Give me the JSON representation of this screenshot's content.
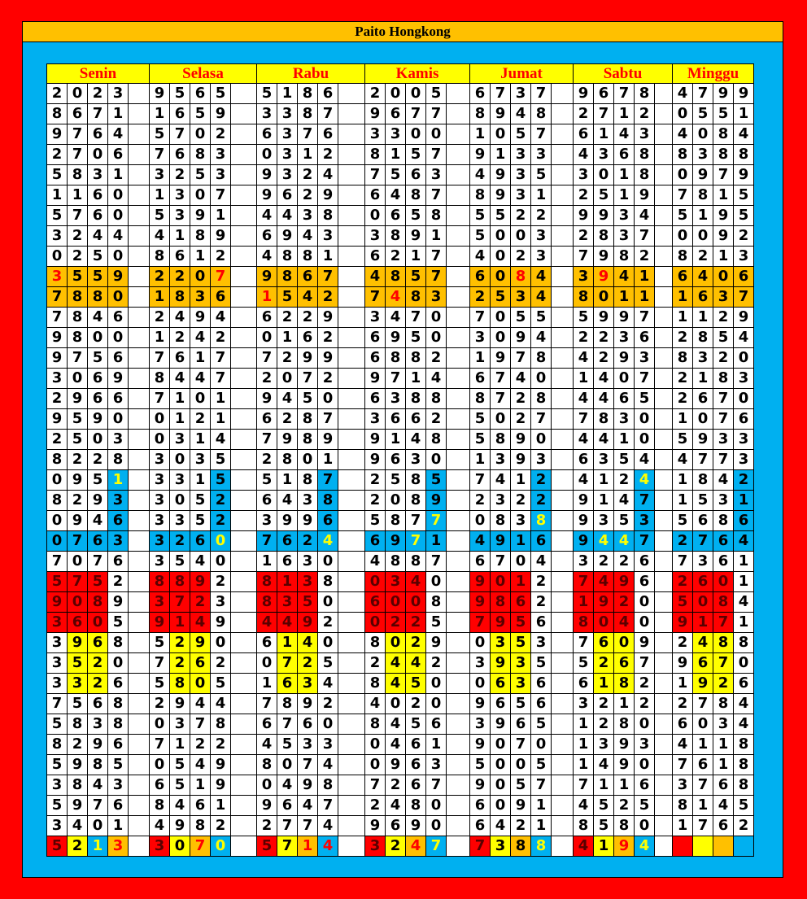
{
  "title": "Paito Hongkong",
  "colors": {
    "frame": "#ff0000",
    "panel": "#00b0f0",
    "title_bar": "#ffc000",
    "header_bg": "#ffff00",
    "header_text": "#ff0000"
  },
  "style_legend": {
    ".": "white",
    "O": "orange",
    "o": "orange red-text",
    "B": "blue",
    "b": "blue yellow-text",
    "r": "blue red-text",
    "R": "red",
    "Y": "yellow"
  },
  "days": [
    {
      "name": "Senin",
      "rows": [
        "2023",
        "8671",
        "9764",
        "2706",
        "5831",
        "1160",
        "5760",
        "3244",
        "0250",
        "3559",
        "7880",
        "7846",
        "9800",
        "9756",
        "3069",
        "2966",
        "9590",
        "2503",
        "8228",
        "0951",
        "8293",
        "0946",
        "0763",
        "7076",
        "5752",
        "9089",
        "3605",
        "3968",
        "3520",
        "3326",
        "7568",
        "5838",
        "8296",
        "5985",
        "3843",
        "5976",
        "3401",
        "5213"
      ],
      "styles": {
        "9": "oOOO",
        "10": "OOOO",
        "19": "...b",
        "20": "...B",
        "21": "...B",
        "22": "BBBB",
        "24": "RRR.",
        "25": "RRR.",
        "26": "RRR.",
        "27": ".YY.",
        "28": ".YY.",
        "29": ".YY.",
        "37": "RYbo"
      }
    },
    {
      "name": "Selasa",
      "rows": [
        "9565",
        "1659",
        "5702",
        "7683",
        "3253",
        "1307",
        "5391",
        "4189",
        "8612",
        "2207",
        "1836",
        "2494",
        "1242",
        "7617",
        "8447",
        "7101",
        "0121",
        "0314",
        "3035",
        "3315",
        "3052",
        "3352",
        "3260",
        "3540",
        "8892",
        "3723",
        "9149",
        "5290",
        "7262",
        "5805",
        "2944",
        "0378",
        "7122",
        "0549",
        "6519",
        "8461",
        "4982",
        "3070"
      ],
      "styles": {
        "9": "OOOo",
        "10": "OOOO",
        "19": "...B",
        "20": "...B",
        "21": "...B",
        "22": "BBBb",
        "24": "RRR.",
        "25": "RRR.",
        "26": "RRR.",
        "27": ".YY.",
        "28": ".YY.",
        "29": ".YY.",
        "37": "RYob"
      }
    },
    {
      "name": "Rabu",
      "rows": [
        "5186",
        "3387",
        "6376",
        "0312",
        "9324",
        "9629",
        "4438",
        "6943",
        "4881",
        "9867",
        "1542",
        "6229",
        "0162",
        "7299",
        "2072",
        "9450",
        "6287",
        "7989",
        "2801",
        "5187",
        "6438",
        "3996",
        "7624",
        "1630",
        "8138",
        "8350",
        "4492",
        "6140",
        "0725",
        "1634",
        "7892",
        "6760",
        "4533",
        "8074",
        "0498",
        "9647",
        "2774",
        "5714"
      ],
      "styles": {
        "9": "OOOO",
        "10": "oOOO",
        "19": "...B",
        "20": "...B",
        "21": "...B",
        "22": "BBBb",
        "24": "RRR.",
        "25": "RRR.",
        "26": "RRR.",
        "27": ".YY.",
        "28": ".YY.",
        "29": ".YY.",
        "37": "RYor"
      }
    },
    {
      "name": "Kamis",
      "rows": [
        "2005",
        "9677",
        "3300",
        "8157",
        "7563",
        "6487",
        "0658",
        "3891",
        "6217",
        "4857",
        "7483",
        "3470",
        "6950",
        "6882",
        "9714",
        "6388",
        "3662",
        "9148",
        "9630",
        "2585",
        "2089",
        "5877",
        "6971",
        "4887",
        "0340",
        "6008",
        "0225",
        "8029",
        "2442",
        "8450",
        "4020",
        "8456",
        "0461",
        "0963",
        "7267",
        "2480",
        "9690",
        "3247"
      ],
      "styles": {
        "9": "OOOO",
        "10": "OoOO",
        "19": "...B",
        "20": "...B",
        "21": "...b",
        "22": "BBbB",
        "24": "RRR.",
        "25": "RRR.",
        "26": "RRR.",
        "27": ".YY.",
        "28": ".YY.",
        "29": ".YY.",
        "37": "RYob"
      }
    },
    {
      "name": "Jumat",
      "rows": [
        "6737",
        "8948",
        "1057",
        "9133",
        "4935",
        "8931",
        "5522",
        "5003",
        "4023",
        "6084",
        "2534",
        "7055",
        "3094",
        "1978",
        "6740",
        "8728",
        "5027",
        "5890",
        "1393",
        "7412",
        "2322",
        "0838",
        "4916",
        "6704",
        "9012",
        "9862",
        "7956",
        "0353",
        "3935",
        "0636",
        "9656",
        "3965",
        "9070",
        "5005",
        "9057",
        "6091",
        "6421",
        "7388"
      ],
      "styles": {
        "9": "OOoO",
        "10": "OOOO",
        "19": "...B",
        "20": "...B",
        "21": "...b",
        "22": "BBBB",
        "24": "RRR.",
        "25": "RRR.",
        "26": "RRR.",
        "27": ".YY.",
        "28": ".YY.",
        "29": ".YY.",
        "37": "RYOb"
      }
    },
    {
      "name": "Sabtu",
      "rows": [
        "9678",
        "2712",
        "6143",
        "4368",
        "3018",
        "2519",
        "9934",
        "2837",
        "7982",
        "3941",
        "8011",
        "5997",
        "2236",
        "4293",
        "1407",
        "4465",
        "7830",
        "4410",
        "6354",
        "4124",
        "9147",
        "9353",
        "9447",
        "3226",
        "7496",
        "1920",
        "8040",
        "7609",
        "5267",
        "6182",
        "3212",
        "1280",
        "1393",
        "1490",
        "7116",
        "4525",
        "8580",
        "4194"
      ],
      "styles": {
        "9": "OoOO",
        "10": "OOOO",
        "19": "...b",
        "20": "...B",
        "21": "...B",
        "22": "BbbB",
        "24": "RRR.",
        "25": "RRR.",
        "26": "RRR.",
        "27": ".YY.",
        "28": ".YY.",
        "29": ".YY.",
        "37": "RYob"
      }
    },
    {
      "name": "Minggu",
      "rows": [
        "4799",
        "0551",
        "4084",
        "8388",
        "0979",
        "7815",
        "5195",
        "0092",
        "8213",
        "6406",
        "1637",
        "1129",
        "2854",
        "8320",
        "2183",
        "2670",
        "1076",
        "5933",
        "4773",
        "1842",
        "1531",
        "5686",
        "2764",
        "7361",
        "2601",
        "5084",
        "9171",
        "2488",
        "9670",
        "1926",
        "2784",
        "6034",
        "4118",
        "7618",
        "3768",
        "8145",
        "1762",
        "    "
      ],
      "styles": {
        "9": "OOOO",
        "10": "OOOO",
        "19": "...B",
        "20": "...B",
        "21": "...B",
        "22": "BBBB",
        "24": "RRR.",
        "25": "RRR.",
        "26": "RRR.",
        "27": ".YY.",
        "28": ".YY.",
        "29": ".YY.",
        "37": "RYOB"
      }
    }
  ]
}
